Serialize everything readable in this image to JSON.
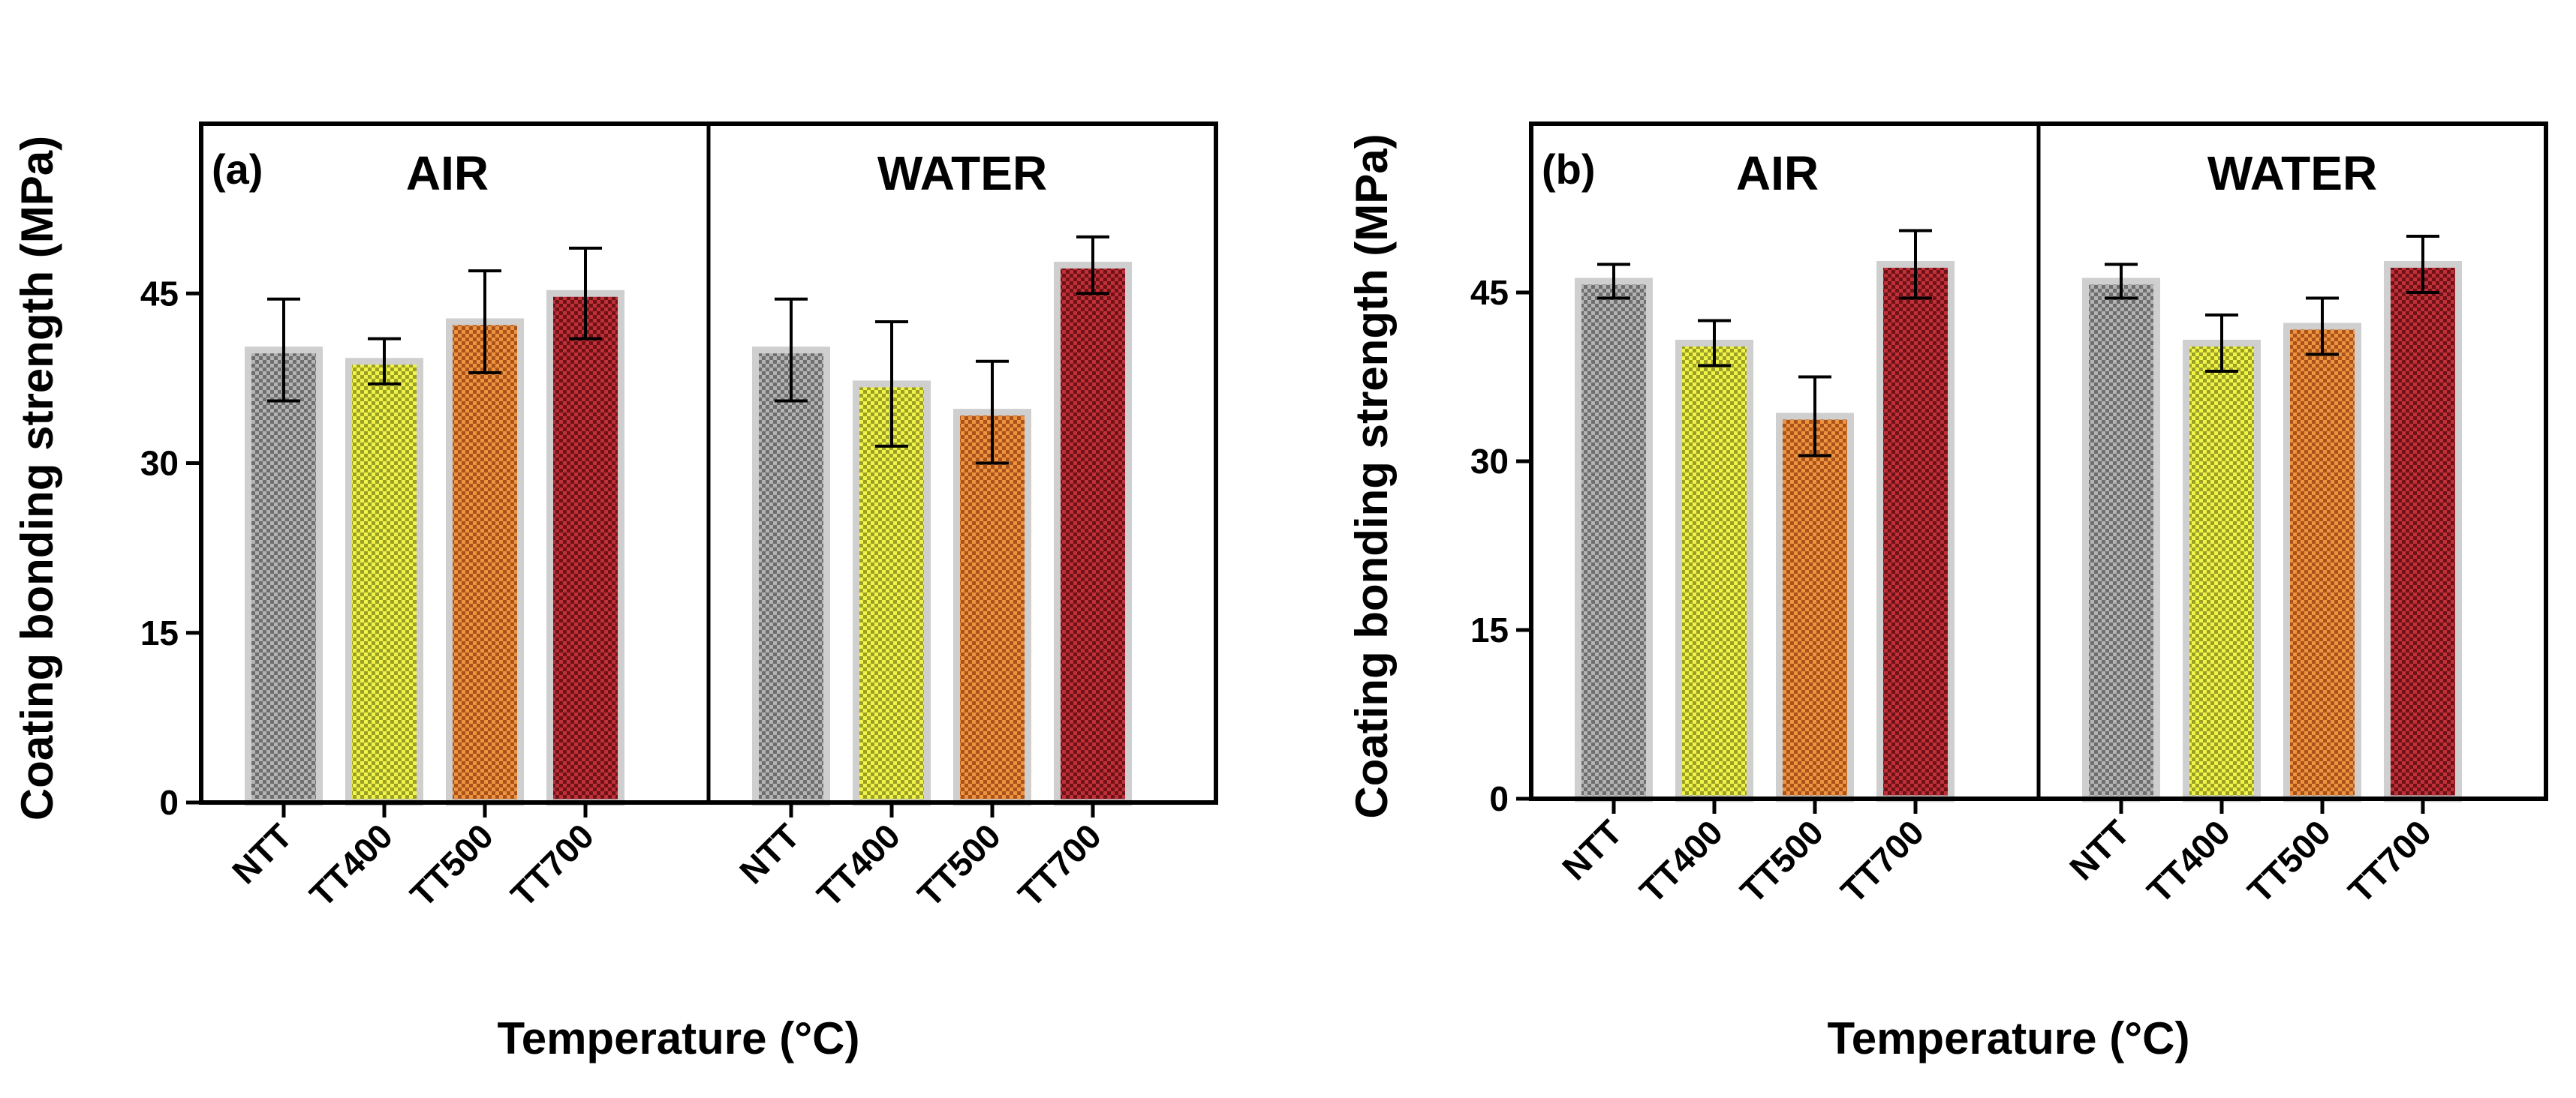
{
  "figure": {
    "xlabel": "Temperature (°C)",
    "ylabel": "Coating bonding strength (MPa)"
  },
  "colors": {
    "NTT": "#8c8c8c",
    "TT400": "#dfe43a",
    "TT500": "#d8782a",
    "TT700": "#a8222a",
    "bar_outline": "#cfcfcf"
  },
  "chart_data": [
    {
      "type": "bar",
      "panel_label": "(a)",
      "title": "",
      "xlabel": "Temperature (°C)",
      "ylabel": "Coating bonding strength (MPa)",
      "ylim": [
        0,
        60
      ],
      "yticks": [
        0,
        15,
        30,
        45
      ],
      "groups": [
        "AIR",
        "WATER"
      ],
      "categories": [
        "NTT",
        "TT400",
        "TT500",
        "TT700"
      ],
      "series": [
        {
          "name": "AIR",
          "values": [
            40,
            39,
            42.5,
            45
          ],
          "errors": [
            4.5,
            2,
            4.5,
            4
          ]
        },
        {
          "name": "WATER",
          "values": [
            40,
            37,
            34.5,
            47.5
          ],
          "errors": [
            4.5,
            5.5,
            4.5,
            2.5
          ]
        }
      ]
    },
    {
      "type": "bar",
      "panel_label": "(b)",
      "title": "",
      "xlabel": "Temperature (°C)",
      "ylabel": "Coating bonding strength (MPa)",
      "ylim": [
        0,
        60
      ],
      "yticks": [
        0,
        15,
        30,
        45
      ],
      "groups": [
        "AIR",
        "WATER"
      ],
      "categories": [
        "NTT",
        "TT400",
        "TT500",
        "TT700"
      ],
      "series": [
        {
          "name": "AIR",
          "values": [
            46,
            40.5,
            34,
            47.5
          ],
          "errors": [
            1.5,
            2,
            3.5,
            3
          ]
        },
        {
          "name": "WATER",
          "values": [
            46,
            40.5,
            42,
            47.5
          ],
          "errors": [
            1.5,
            2.5,
            2.5,
            2.5
          ]
        }
      ]
    }
  ]
}
